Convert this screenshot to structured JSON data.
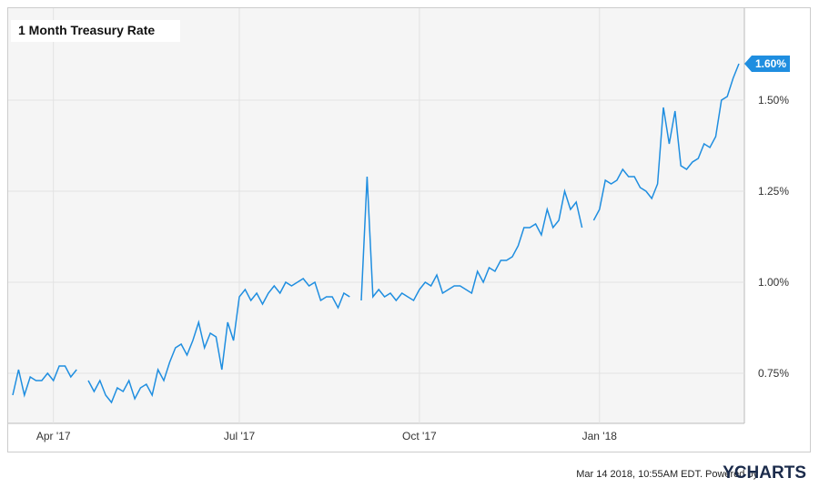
{
  "chart_data": {
    "type": "line",
    "title": "1 Month Treasury Rate",
    "categories": [
      null,
      null,
      null,
      null,
      null,
      null,
      null,
      "Apr '17",
      null,
      null,
      null,
      null,
      null,
      null,
      null,
      null,
      null,
      null,
      null,
      null,
      null,
      null,
      null,
      null,
      null,
      null,
      null,
      null,
      null,
      null,
      null,
      null,
      null,
      null,
      null,
      null,
      null,
      null,
      null,
      "Jul '17",
      null,
      null,
      null,
      null,
      null,
      null,
      null,
      null,
      null,
      null,
      null,
      null,
      null,
      null,
      null,
      null,
      null,
      null,
      null,
      null,
      null,
      null,
      null,
      null,
      null,
      null,
      null,
      null,
      null,
      null,
      "Oct '17",
      null,
      null,
      null,
      null,
      null,
      null,
      null,
      null,
      null,
      null,
      null,
      null,
      null,
      null,
      null,
      null,
      null,
      null,
      null,
      null,
      null,
      null,
      null,
      null,
      null,
      null,
      null,
      null,
      null,
      null,
      "Jan '18",
      null,
      null,
      null,
      null,
      null,
      null,
      null,
      null,
      null,
      null,
      null,
      null,
      null,
      null,
      null,
      null,
      null,
      null,
      null,
      null,
      null,
      null,
      null,
      null
    ],
    "series": [
      {
        "name": "1 Month Treasury Rate",
        "color": "#1f8ee0",
        "values": [
          0.69,
          0.76,
          0.69,
          0.74,
          0.73,
          0.73,
          0.75,
          0.73,
          0.77,
          0.77,
          0.74,
          0.76,
          null,
          0.73,
          0.7,
          0.73,
          0.69,
          0.67,
          0.71,
          0.7,
          0.73,
          0.68,
          0.71,
          0.72,
          0.69,
          0.76,
          0.73,
          0.78,
          0.82,
          0.83,
          0.8,
          0.84,
          0.89,
          0.82,
          0.86,
          0.85,
          0.76,
          0.89,
          0.84,
          0.96,
          0.98,
          0.95,
          0.97,
          0.94,
          0.97,
          0.99,
          0.97,
          1.0,
          0.99,
          1.0,
          1.01,
          0.99,
          1.0,
          0.95,
          0.96,
          0.96,
          0.93,
          0.97,
          0.96,
          null,
          0.95,
          1.29,
          0.96,
          0.98,
          0.96,
          0.97,
          0.95,
          0.97,
          0.96,
          0.95,
          0.98,
          1.0,
          0.99,
          1.02,
          0.97,
          0.98,
          0.99,
          0.99,
          0.98,
          0.97,
          1.03,
          1.0,
          1.04,
          1.03,
          1.06,
          1.06,
          1.07,
          1.1,
          1.15,
          1.15,
          1.16,
          1.13,
          1.2,
          1.15,
          1.17,
          1.25,
          1.2,
          1.22,
          1.15,
          null,
          1.17,
          1.2,
          1.28,
          1.27,
          1.28,
          1.31,
          1.29,
          1.29,
          1.26,
          1.25,
          1.23,
          1.27,
          1.48,
          1.38,
          1.47,
          1.32,
          1.31,
          1.33,
          1.34,
          1.38,
          1.37,
          1.4,
          1.5,
          1.51,
          1.56,
          1.6
        ],
        "value_labels": [
          null,
          null,
          null,
          null,
          null,
          null,
          null,
          null,
          null,
          null,
          null,
          null,
          null,
          null,
          null,
          null,
          null,
          null,
          null,
          null,
          null,
          null,
          null,
          null,
          null,
          null,
          null,
          null,
          null,
          null,
          null,
          null,
          null,
          null,
          null,
          null,
          null,
          null,
          null,
          null,
          null,
          null,
          null,
          null,
          null,
          null,
          null,
          null,
          null,
          null,
          null,
          null,
          null,
          null,
          null,
          null,
          null,
          null,
          null,
          null,
          null,
          null,
          null,
          null,
          null,
          null,
          null,
          null,
          null,
          null,
          null,
          null,
          null,
          null,
          null,
          null,
          null,
          null,
          null,
          null,
          null,
          null,
          null,
          null,
          null,
          null,
          null,
          null,
          null,
          null,
          null,
          null,
          null,
          null,
          null,
          null,
          null,
          null,
          null,
          null,
          null,
          null,
          null,
          null,
          null,
          null,
          null,
          null,
          null,
          null,
          null,
          null,
          null,
          null,
          null,
          null,
          null,
          null,
          null,
          null,
          null,
          null,
          null,
          null,
          null,
          "1.60%"
        ]
      }
    ],
    "ylim": [
      0.6125,
      1.75
    ],
    "yticks": [
      {
        "value": 0.75,
        "label": "0.75%"
      },
      {
        "value": 1.0,
        "label": "1.00%"
      },
      {
        "value": 1.25,
        "label": "1.25%"
      },
      {
        "value": 1.5,
        "label": "1.50%"
      }
    ],
    "grid": true
  },
  "footer": {
    "timestamp": "Mar 14 2018, 10:55AM EDT.",
    "powered": "Powered by",
    "brand": "YCHARTS"
  }
}
